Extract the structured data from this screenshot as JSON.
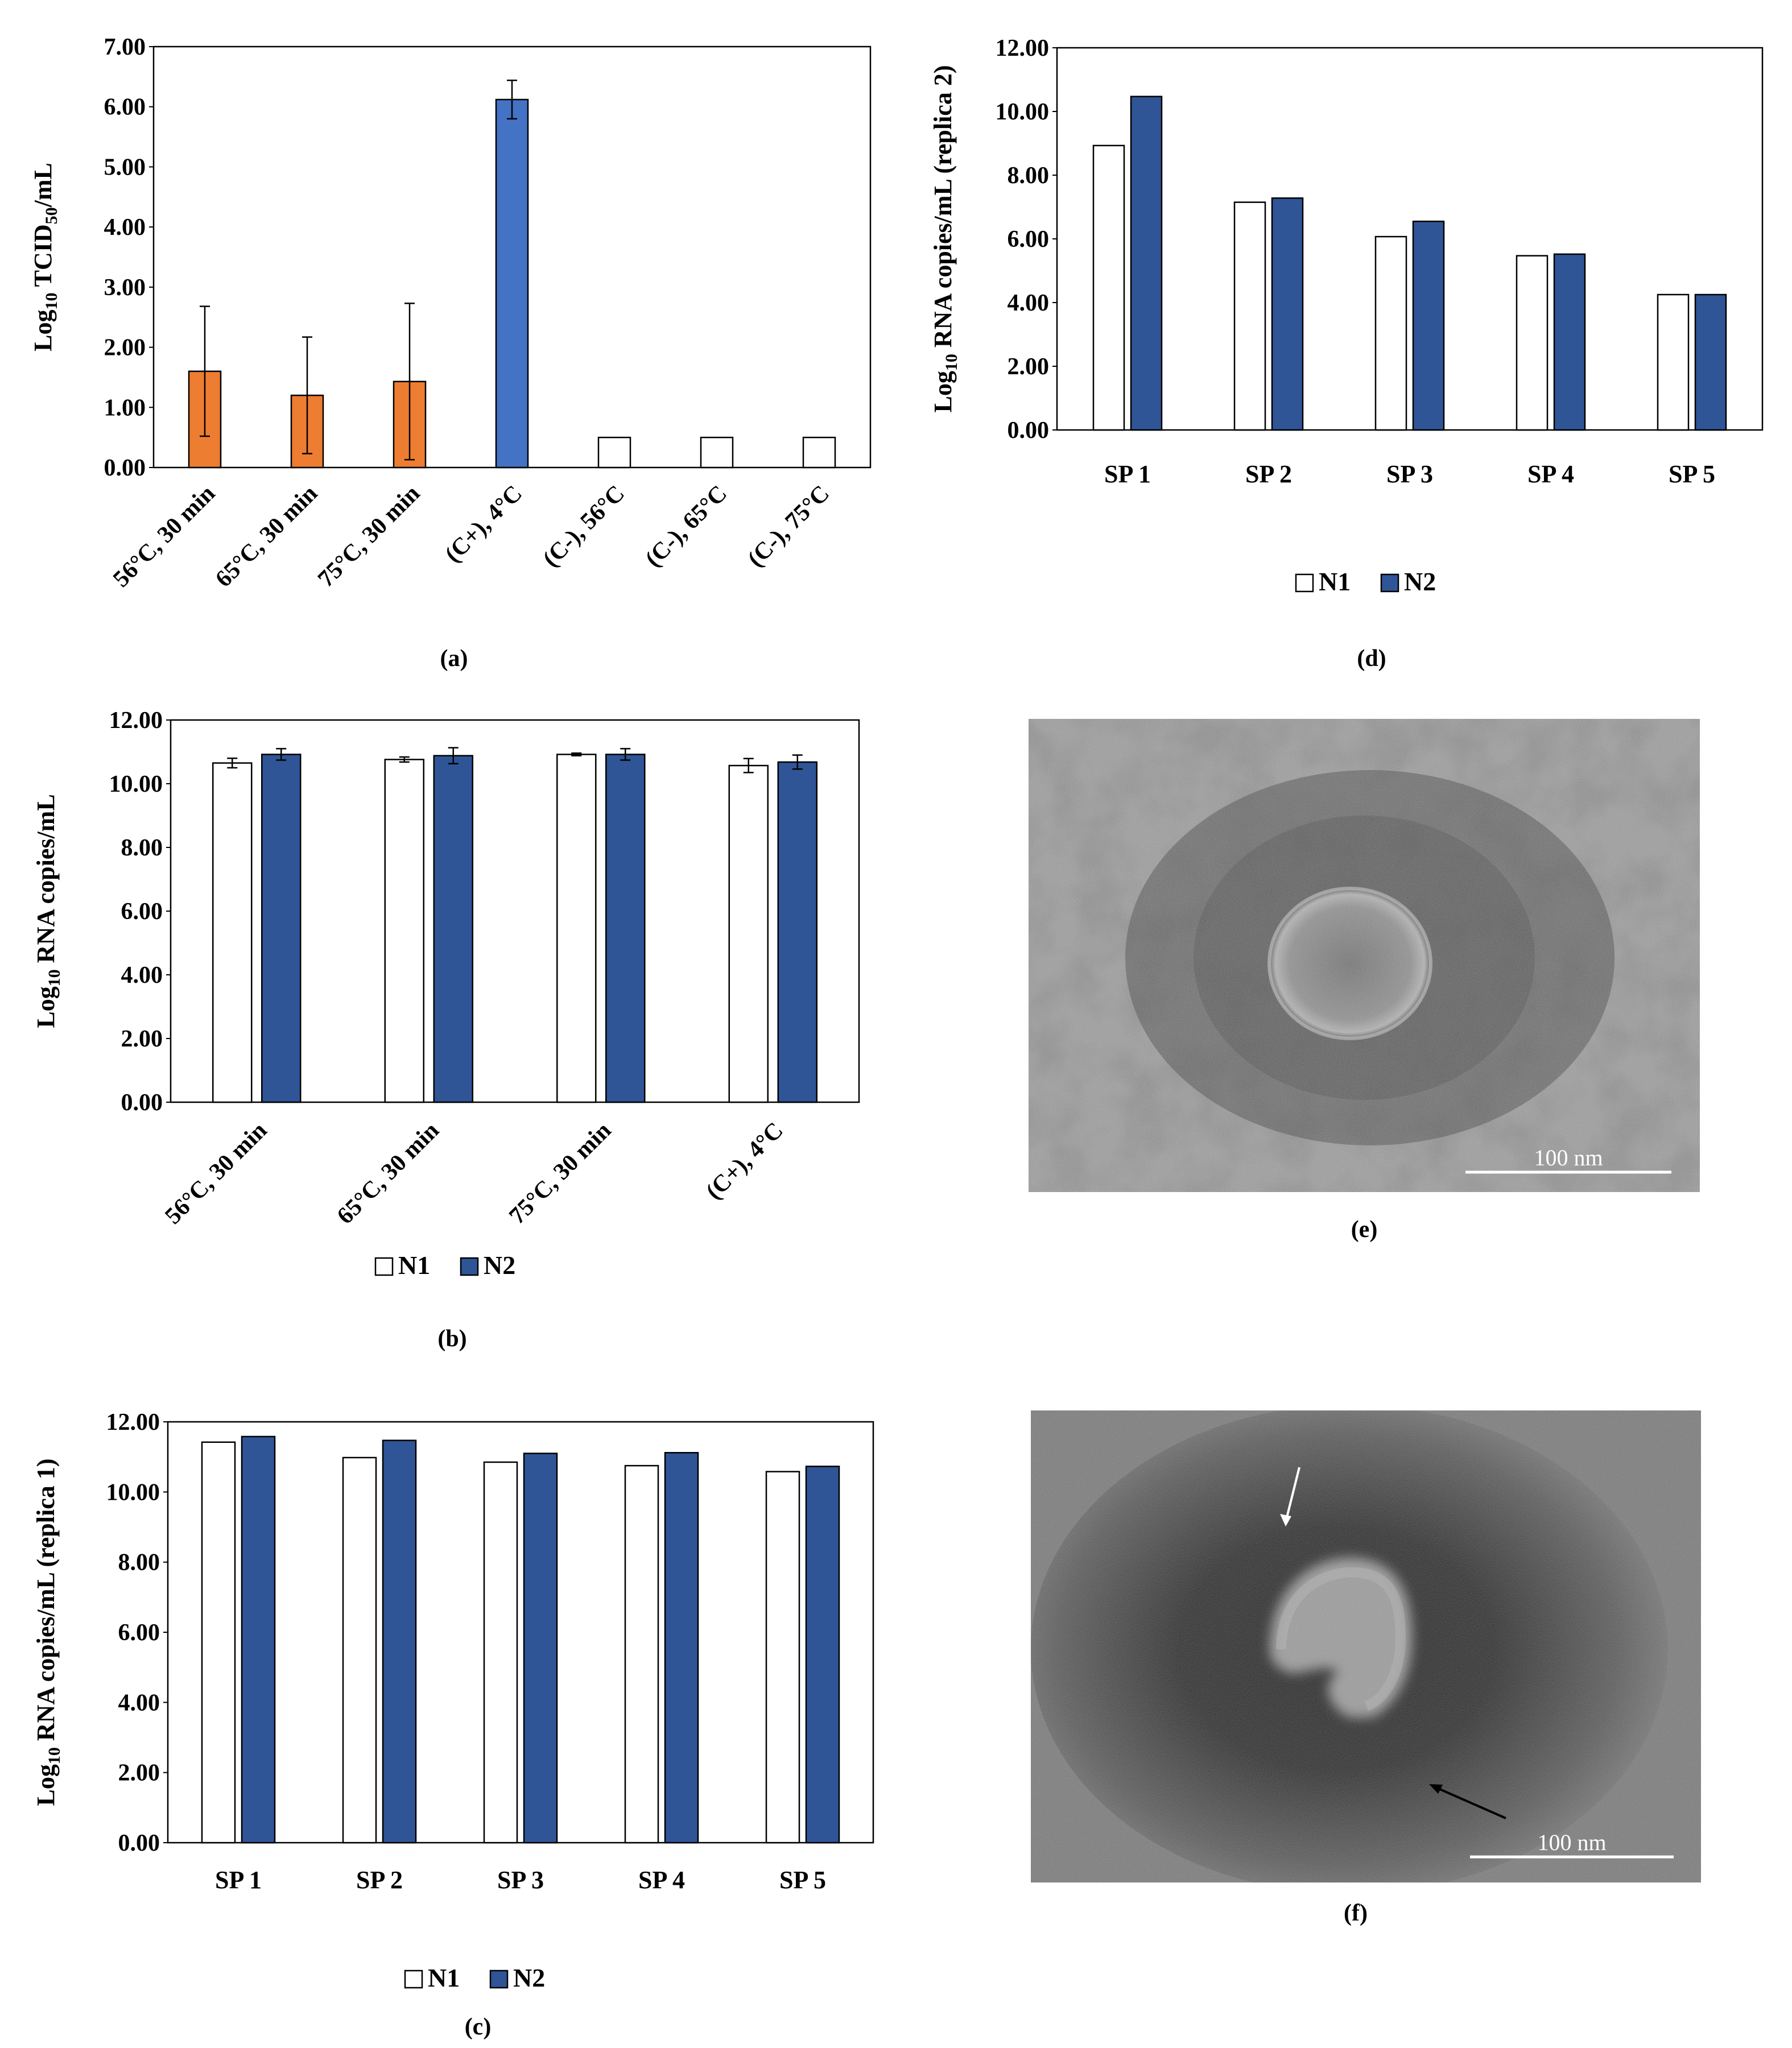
{
  "figure": {
    "captions": {
      "a": "(a)",
      "b": "(b)",
      "c": "(c)",
      "d": "(d)",
      "e": "(e)",
      "f": "(f)"
    },
    "scale_bars": {
      "e": "100 nm",
      "f": "100 nm"
    }
  },
  "chart_data": [
    {
      "id": "a",
      "type": "bar",
      "ylabel": "Log10 TCID50/mL",
      "ylim": [
        0,
        7
      ],
      "yticks": [
        "0.00",
        "1.00",
        "2.00",
        "3.00",
        "4.00",
        "5.00",
        "6.00",
        "7.00"
      ],
      "categories": [
        "56°C, 30 min",
        "65°C, 30 min",
        "75°C, 30 min",
        "(C+), 4°C",
        "(C-), 56°C",
        "(C-), 65°C",
        "(C-), 75°C"
      ],
      "values": [
        1.6,
        1.2,
        1.43,
        6.12,
        0.5,
        0.5,
        0.5
      ],
      "errors": [
        1.08,
        0.97,
        1.3,
        0.32,
        0,
        0,
        0
      ],
      "colors": [
        "#ED7D31",
        "#ED7D31",
        "#ED7D31",
        "#4472C4",
        "#FFFFFF",
        "#FFFFFF",
        "#FFFFFF"
      ],
      "grid": false
    },
    {
      "id": "b",
      "type": "bar",
      "ylabel": "Log10 RNA copies/mL",
      "ylim": [
        0,
        12
      ],
      "yticks": [
        "0.00",
        "2.00",
        "4.00",
        "6.00",
        "8.00",
        "10.00",
        "12.00"
      ],
      "categories": [
        "56°C, 30 min",
        "65°C, 30 min",
        "75°C, 30 min",
        "(C+), 4°C"
      ],
      "series": [
        {
          "name": "N1",
          "values": [
            10.65,
            10.76,
            10.92,
            10.57
          ],
          "errors": [
            0.15,
            0.08,
            0.04,
            0.22
          ],
          "color": "#FFFFFF"
        },
        {
          "name": "N2",
          "values": [
            10.92,
            10.88,
            10.92,
            10.68
          ],
          "errors": [
            0.18,
            0.25,
            0.18,
            0.22
          ],
          "color": "#2F5597"
        }
      ],
      "legend": "bottom",
      "grid": false
    },
    {
      "id": "c",
      "type": "bar",
      "ylabel": "Log10 RNA copies/mL (replica 1)",
      "ylim": [
        0,
        12
      ],
      "yticks": [
        "0.00",
        "2.00",
        "4.00",
        "6.00",
        "8.00",
        "10.00",
        "12.00"
      ],
      "categories": [
        "SP 1",
        "SP 2",
        "SP 3",
        "SP 4",
        "SP 5"
      ],
      "series": [
        {
          "name": "N1",
          "values": [
            11.42,
            10.98,
            10.85,
            10.75,
            10.58
          ],
          "color": "#FFFFFF"
        },
        {
          "name": "N2",
          "values": [
            11.58,
            11.47,
            11.1,
            11.12,
            10.73
          ],
          "color": "#2F5597"
        }
      ],
      "legend": "bottom",
      "grid": false
    },
    {
      "id": "d",
      "type": "bar",
      "ylabel": "Log10 RNA copies/mL (replica 2)",
      "ylim": [
        0,
        12
      ],
      "yticks": [
        "0.00",
        "2.00",
        "4.00",
        "6.00",
        "8.00",
        "10.00",
        "12.00"
      ],
      "categories": [
        "SP 1",
        "SP 2",
        "SP 3",
        "SP 4",
        "SP 5"
      ],
      "series": [
        {
          "name": "N1",
          "values": [
            8.93,
            7.15,
            6.07,
            5.47,
            4.25
          ],
          "color": "#FFFFFF"
        },
        {
          "name": "N2",
          "values": [
            10.47,
            7.28,
            6.55,
            5.52,
            4.25
          ],
          "color": "#2F5597"
        }
      ],
      "legend": "bottom",
      "grid": false
    }
  ]
}
